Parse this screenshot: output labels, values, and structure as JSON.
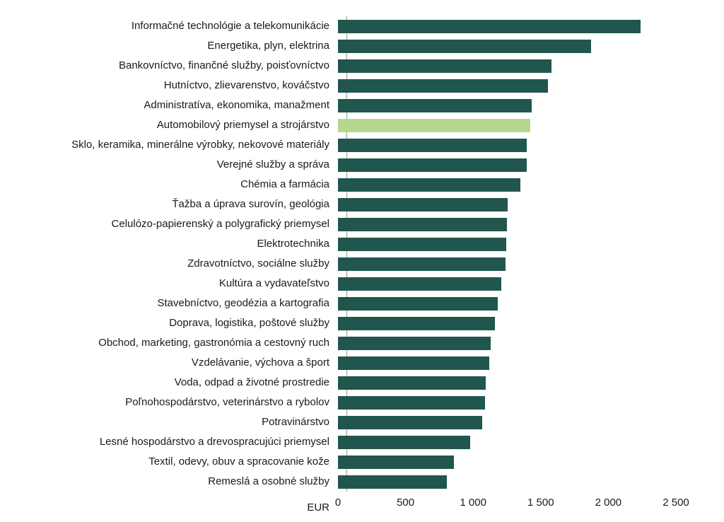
{
  "chart_data": {
    "type": "bar",
    "orientation": "horizontal",
    "title": "",
    "xlabel": "EUR",
    "ylabel": "",
    "xlim": [
      0,
      2500
    ],
    "grid": false,
    "legend": false,
    "x_ticks": [
      0,
      500,
      1000,
      1500,
      2000,
      2500
    ],
    "x_tick_labels": [
      "0",
      "500",
      "1 000",
      "1 500",
      "2 000",
      "2 500"
    ],
    "bar_color": "#21564e",
    "highlight_color": "#b6d88c",
    "highlight_index": 5,
    "highlight_category": "Automobilový priemysel a strojárstvo",
    "categories": [
      "Informačné technológie a telekomunikácie",
      "Energetika, plyn, elektrina",
      "Bankovníctvo, finančné služby, poisťovníctvo",
      "Hutníctvo, zlievarenstvo, kováčstvo",
      "Administratíva, ekonomika, manažment",
      "Automobilový priemysel a strojárstvo",
      "Sklo, keramika, minerálne výrobky, nekovové materiály",
      "Verejné služby a správa",
      "Chémia a farmácia",
      "Ťažba a úprava surovín, geológia",
      "Celulózo-papierenský a polygrafický priemysel",
      "Elektrotechnika",
      "Zdravotníctvo, sociálne služby",
      "Kultúra a vydavateľstvo",
      "Stavebníctvo, geodézia a kartografia",
      "Doprava, logistika, poštové služby",
      "Obchod, marketing, gastronómia a cestovný ruch",
      "Vzdelávanie, výchova a šport",
      "Voda, odpad a životné prostredie",
      "Poľnohospodárstvo, veterinárstvo a rybolov",
      "Potravinárstvo",
      "Lesné hospodárstvo a drevospracujúci priemysel",
      "Textil, odevy, obuv a spracovanie kože",
      "Remeslá a osobné služby"
    ],
    "values": [
      2240,
      1870,
      1580,
      1555,
      1435,
      1420,
      1395,
      1395,
      1350,
      1255,
      1250,
      1245,
      1240,
      1210,
      1180,
      1160,
      1130,
      1120,
      1095,
      1090,
      1065,
      980,
      860,
      805
    ]
  }
}
